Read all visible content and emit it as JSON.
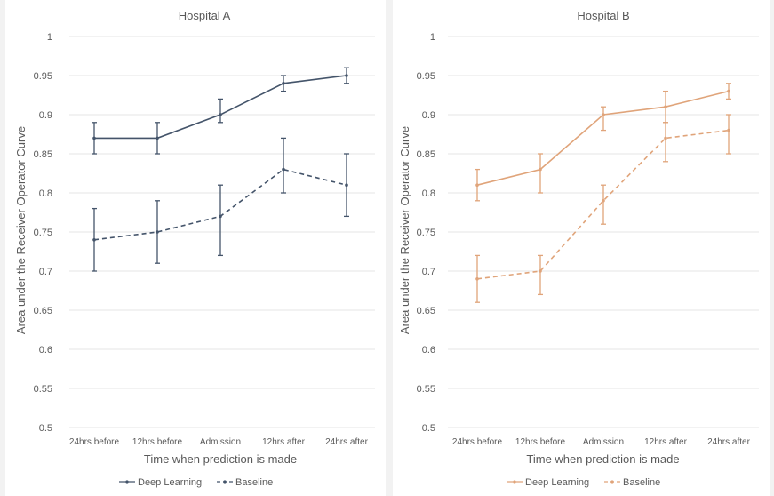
{
  "chart_data": [
    {
      "type": "line",
      "title": "Hospital A",
      "xlabel": "Time when prediction is made",
      "ylabel": "Area under the Receiver  Operator Curve",
      "categories": [
        "24hrs before",
        "12hrs before",
        "Admission",
        "12hrs after",
        "24hrs after"
      ],
      "ylim": [
        0.5,
        1
      ],
      "yticks": [
        "0.5",
        "0.55",
        "0.6",
        "0.65",
        "0.7",
        "0.75",
        "0.8",
        "0.85",
        "0.9",
        "0.95",
        "1"
      ],
      "grid": true,
      "legend": "bottom",
      "series": [
        {
          "name": "Deep Learning",
          "style": "solid",
          "color": "#44546a",
          "values": [
            0.87,
            0.87,
            0.9,
            0.94,
            0.95
          ],
          "err_high": [
            0.89,
            0.89,
            0.92,
            0.95,
            0.96
          ],
          "err_low": [
            0.85,
            0.85,
            0.89,
            0.93,
            0.94
          ]
        },
        {
          "name": "Baseline",
          "style": "dashed",
          "color": "#44546a",
          "values": [
            0.74,
            0.75,
            0.77,
            0.83,
            0.81
          ],
          "err_high": [
            0.78,
            0.79,
            0.81,
            0.87,
            0.85
          ],
          "err_low": [
            0.7,
            0.71,
            0.72,
            0.8,
            0.77
          ]
        }
      ]
    },
    {
      "type": "line",
      "title": "Hospital B",
      "xlabel": "Time when prediction is made",
      "ylabel": "Area under the Receiver  Operator Curve",
      "categories": [
        "24hrs before",
        "12hrs before",
        "Admission",
        "12hrs after",
        "24hrs after"
      ],
      "ylim": [
        0.5,
        1
      ],
      "yticks": [
        "0.5",
        "0.55",
        "0.6",
        "0.65",
        "0.7",
        "0.75",
        "0.8",
        "0.85",
        "0.9",
        "0.95",
        "1"
      ],
      "grid": true,
      "legend": "bottom",
      "series": [
        {
          "name": "Deep Learning",
          "style": "solid",
          "color": "#e0a47a",
          "values": [
            0.81,
            0.83,
            0.9,
            0.91,
            0.93
          ],
          "err_high": [
            0.83,
            0.85,
            0.91,
            0.93,
            0.94
          ],
          "err_low": [
            0.79,
            0.8,
            0.88,
            0.89,
            0.92
          ]
        },
        {
          "name": "Baseline",
          "style": "dashed",
          "color": "#e0a47a",
          "values": [
            0.69,
            0.7,
            0.79,
            0.87,
            0.88
          ],
          "err_high": [
            0.72,
            0.72,
            0.81,
            0.89,
            0.9
          ],
          "err_low": [
            0.66,
            0.67,
            0.76,
            0.84,
            0.85
          ]
        }
      ]
    }
  ]
}
